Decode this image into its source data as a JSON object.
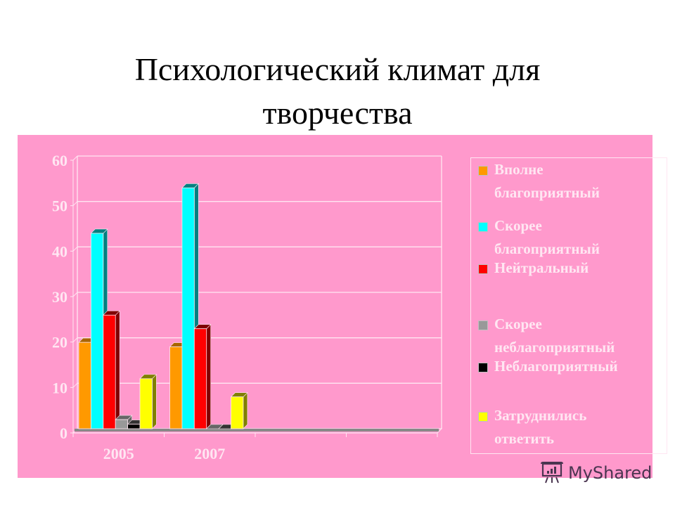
{
  "title": "Психологический климат для\nтворчества",
  "title_line1": "Психологический климат для",
  "title_line2": "творчества",
  "colors": {
    "panel": "#ff99cc",
    "grid": "#ffe6f2",
    "series": [
      "#ff9900",
      "#00ffff",
      "#ff0000",
      "#999999",
      "#000000",
      "#ffff00"
    ],
    "series_side": [
      "#a86500",
      "#008080",
      "#800000",
      "#666666",
      "#333333",
      "#808000"
    ]
  },
  "legend": {
    "items": [
      {
        "label": "Вполне\nблагоприятный",
        "color": "#ff9900"
      },
      {
        "label": "Скорее\nблагоприятный",
        "color": "#00ffff"
      },
      {
        "label": "Нейтральный",
        "color": "#ff0000"
      },
      {
        "label": "Скорее\nнеблагоприятный",
        "color": "#999999"
      },
      {
        "label": "Неблагоприятный",
        "color": "#000000"
      },
      {
        "label": "Затруднились\nответить",
        "color": "#ffff00"
      }
    ]
  },
  "watermark": {
    "text": "MyShared"
  },
  "chart_data": {
    "type": "bar",
    "style": "3d-clustered",
    "title": "Психологический климат для творчества",
    "xlabel": "",
    "ylabel": "",
    "categories": [
      "2005",
      "2007",
      "",
      ""
    ],
    "yticks": [
      0,
      10,
      20,
      30,
      40,
      50,
      60
    ],
    "ylim": [
      0,
      60
    ],
    "grid": true,
    "legend_position": "right",
    "series": [
      {
        "name": "Вполне благоприятный",
        "values": [
          19,
          18
        ]
      },
      {
        "name": "Скорее благоприятный",
        "values": [
          43,
          53
        ]
      },
      {
        "name": "Нейтральный",
        "values": [
          25,
          22
        ]
      },
      {
        "name": "Скорее неблагоприятный",
        "values": [
          2,
          0
        ]
      },
      {
        "name": "Неблагоприятный",
        "values": [
          1,
          0
        ]
      },
      {
        "name": "Затруднились ответить",
        "values": [
          11,
          7
        ]
      }
    ]
  }
}
